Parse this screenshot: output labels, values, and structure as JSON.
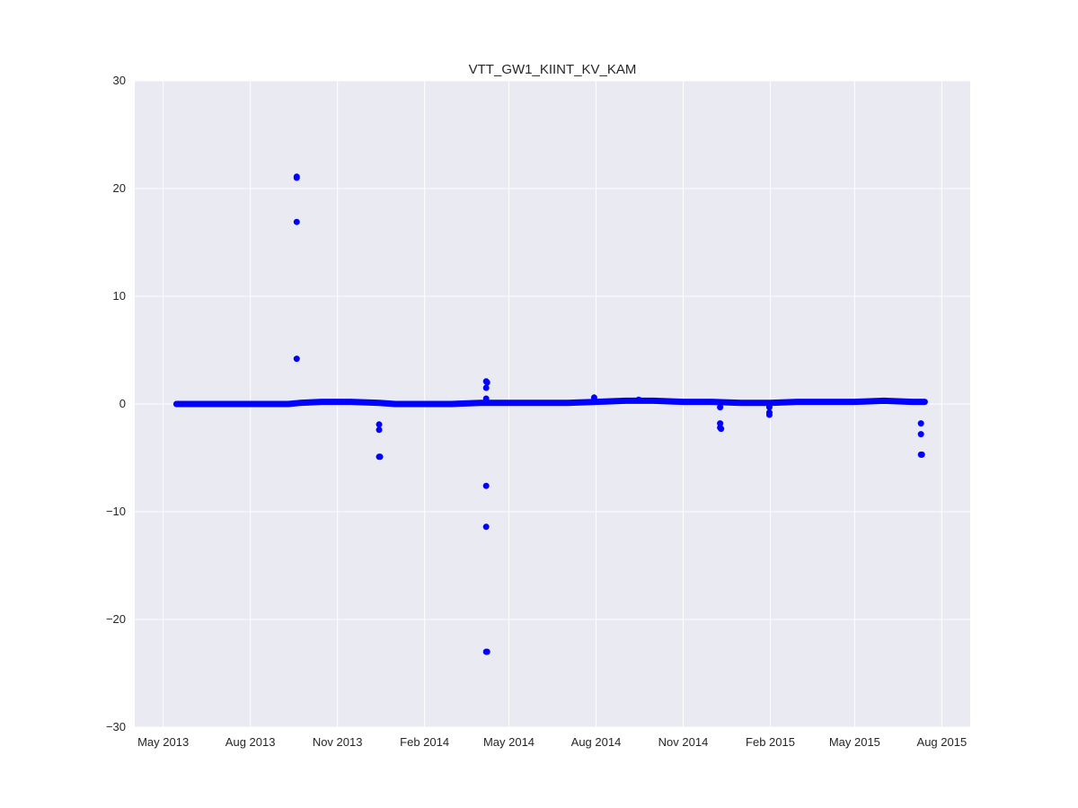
{
  "chart_data": {
    "type": "scatter",
    "title": "VTT_GW1_KIINT_KV_KAM",
    "xlabel": "",
    "ylabel": "",
    "xlim": [
      "2013-04-01",
      "2015-08-31"
    ],
    "ylim": [
      -30,
      30
    ],
    "x_ticks": [
      {
        "date": "2013-05-01",
        "label": "May 2013"
      },
      {
        "date": "2013-08-01",
        "label": "Aug 2013"
      },
      {
        "date": "2013-11-01",
        "label": "Nov 2013"
      },
      {
        "date": "2014-02-01",
        "label": "Feb 2014"
      },
      {
        "date": "2014-05-01",
        "label": "May 2014"
      },
      {
        "date": "2014-08-01",
        "label": "Aug 2014"
      },
      {
        "date": "2014-11-01",
        "label": "Nov 2014"
      },
      {
        "date": "2015-02-01",
        "label": "Feb 2015"
      },
      {
        "date": "2015-05-01",
        "label": "May 2015"
      },
      {
        "date": "2015-08-01",
        "label": "Aug 2015"
      }
    ],
    "y_ticks": [
      {
        "value": 30,
        "label": "30"
      },
      {
        "value": 20,
        "label": "20"
      },
      {
        "value": 10,
        "label": "10"
      },
      {
        "value": 0,
        "label": "0"
      },
      {
        "value": -10,
        "label": "−10"
      },
      {
        "value": -20,
        "label": "−20"
      },
      {
        "value": -30,
        "label": "−30"
      }
    ],
    "grid": true,
    "legend": "none",
    "colors": {
      "background": "#eaeaf2",
      "grid": "#ffffff",
      "points": "#0000ff",
      "text": "#262626"
    },
    "baseline": [
      {
        "x": "2013-05-15",
        "y": 0.0
      },
      {
        "x": "2013-06-15",
        "y": 0.0
      },
      {
        "x": "2013-07-15",
        "y": 0.0
      },
      {
        "x": "2013-08-15",
        "y": 0.0
      },
      {
        "x": "2013-09-10",
        "y": 0.0
      },
      {
        "x": "2013-09-22",
        "y": 0.1
      },
      {
        "x": "2013-10-15",
        "y": 0.2
      },
      {
        "x": "2013-11-15",
        "y": 0.2
      },
      {
        "x": "2013-12-15",
        "y": 0.1
      },
      {
        "x": "2014-01-01",
        "y": 0.0
      },
      {
        "x": "2014-02-01",
        "y": 0.0
      },
      {
        "x": "2014-03-01",
        "y": 0.0
      },
      {
        "x": "2014-04-01",
        "y": 0.1
      },
      {
        "x": "2014-05-01",
        "y": 0.1
      },
      {
        "x": "2014-06-01",
        "y": 0.1
      },
      {
        "x": "2014-07-01",
        "y": 0.1
      },
      {
        "x": "2014-08-01",
        "y": 0.2
      },
      {
        "x": "2014-09-01",
        "y": 0.3
      },
      {
        "x": "2014-10-01",
        "y": 0.3
      },
      {
        "x": "2014-11-01",
        "y": 0.2
      },
      {
        "x": "2014-12-01",
        "y": 0.2
      },
      {
        "x": "2015-01-01",
        "y": 0.1
      },
      {
        "x": "2015-02-01",
        "y": 0.1
      },
      {
        "x": "2015-03-01",
        "y": 0.2
      },
      {
        "x": "2015-04-01",
        "y": 0.2
      },
      {
        "x": "2015-05-01",
        "y": 0.2
      },
      {
        "x": "2015-06-01",
        "y": 0.3
      },
      {
        "x": "2015-07-01",
        "y": 0.2
      },
      {
        "x": "2015-07-14",
        "y": 0.2
      }
    ],
    "points": [
      {
        "x": "2013-09-19",
        "y": 21.0
      },
      {
        "x": "2013-09-19",
        "y": 21.1
      },
      {
        "x": "2013-09-19",
        "y": 16.9
      },
      {
        "x": "2013-09-19",
        "y": 4.2
      },
      {
        "x": "2013-12-15",
        "y": -1.9
      },
      {
        "x": "2013-12-15",
        "y": -2.4
      },
      {
        "x": "2013-12-15",
        "y": -4.9
      },
      {
        "x": "2013-12-16",
        "y": -4.9
      },
      {
        "x": "2014-04-07",
        "y": 2.1
      },
      {
        "x": "2014-04-08",
        "y": 2.0
      },
      {
        "x": "2014-04-07",
        "y": 1.5
      },
      {
        "x": "2014-04-07",
        "y": 0.5
      },
      {
        "x": "2014-04-07",
        "y": -7.6
      },
      {
        "x": "2014-04-07",
        "y": -11.4
      },
      {
        "x": "2014-04-07",
        "y": -23.0
      },
      {
        "x": "2014-04-08",
        "y": -23.0
      },
      {
        "x": "2014-07-30",
        "y": 0.6
      },
      {
        "x": "2014-09-15",
        "y": 0.4
      },
      {
        "x": "2014-12-10",
        "y": -0.3
      },
      {
        "x": "2014-12-10",
        "y": -1.8
      },
      {
        "x": "2014-12-10",
        "y": -2.2
      },
      {
        "x": "2014-12-11",
        "y": -2.3
      },
      {
        "x": "2015-01-31",
        "y": -0.3
      },
      {
        "x": "2015-01-31",
        "y": -0.8
      },
      {
        "x": "2015-01-31",
        "y": -1.0
      },
      {
        "x": "2015-07-10",
        "y": -1.8
      },
      {
        "x": "2015-07-10",
        "y": -2.8
      },
      {
        "x": "2015-07-10",
        "y": -4.7
      },
      {
        "x": "2015-07-11",
        "y": -4.7
      }
    ]
  }
}
